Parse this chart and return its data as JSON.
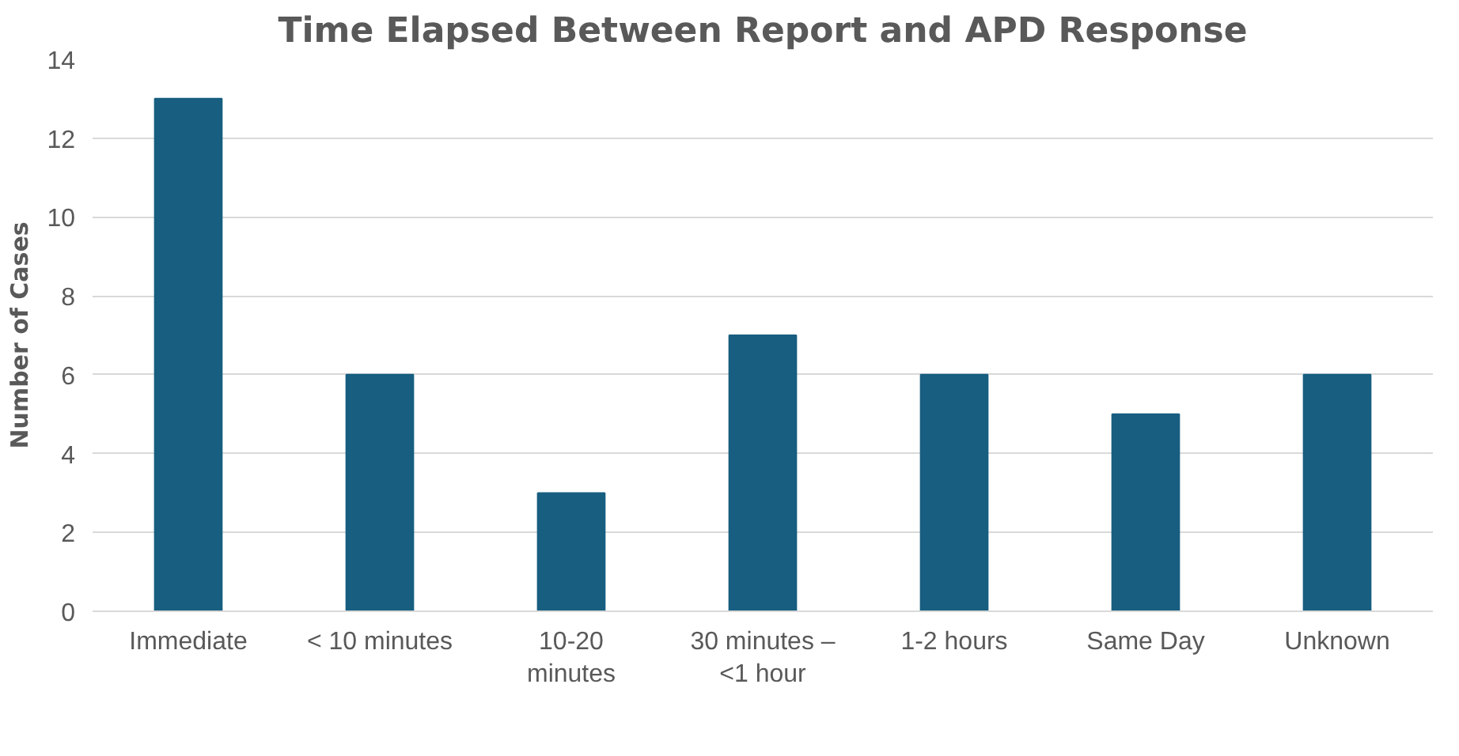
{
  "chart_data": {
    "type": "bar",
    "title": "Time Elapsed Between Report and APD Response",
    "ylabel": "Number of Cases",
    "categories": [
      "Immediate",
      "< 10 minutes",
      "10-20 minutes",
      "30 minutes – <1 hour",
      "1-2 hours",
      "Same Day",
      "Unknown"
    ],
    "values": [
      13,
      6,
      3,
      7,
      6,
      5,
      6
    ],
    "color": "#175e80",
    "ylim": [
      0,
      14
    ],
    "yticks": [
      0,
      2,
      4,
      6,
      8,
      10,
      12,
      14
    ],
    "grid": "y"
  }
}
